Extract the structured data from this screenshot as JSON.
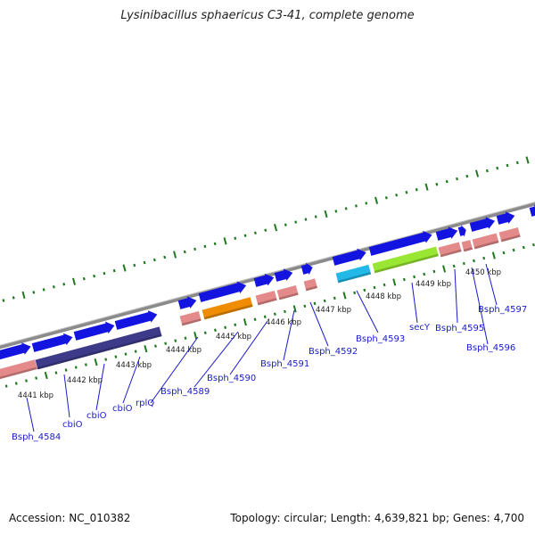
{
  "title": "Lysinibacillus sphaericus C3-41, complete genome",
  "footer": {
    "accession": "Accession: NC_010382",
    "topology": "Topology: circular; Length: 4,639,821 bp; Genes: 4,700"
  },
  "colors": {
    "forward_cds": "#1414e0",
    "pink_feature": "#e58a8a",
    "dark_purple_feature": "#3e3a8a",
    "orange_feature": "#f08c00",
    "cyan_feature": "#22b8e8",
    "lime_feature": "#99e633",
    "backbone": "#8a8a8a",
    "tick_green": "#1f7a1f",
    "label_blue": "#1a1acc"
  },
  "kbp_ticks": [
    "4441 kbp",
    "4442 kbp",
    "4443 kbp",
    "4444 kbp",
    "4445 kbp",
    "4446 kbp",
    "4447 kbp",
    "4448 kbp",
    "4449 kbp",
    "4450 kbp"
  ],
  "gene_labels": [
    "Bsph_4584",
    "cbiO",
    "cbiO",
    "rplQ",
    "Bsph_4589",
    "Bsph_4590",
    "Bsph_4591",
    "Bsph_4592",
    "Bsph_4593",
    "secY",
    "Bsph_4595",
    "Bsph_4596",
    "Bsph_4597"
  ]
}
